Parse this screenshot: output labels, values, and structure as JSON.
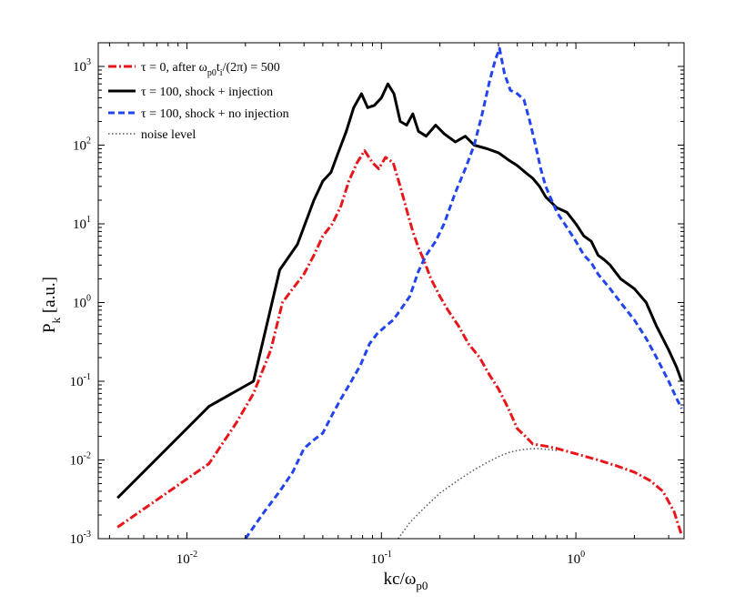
{
  "chart_data": {
    "type": "line",
    "title": "",
    "xscale": "log",
    "yscale": "log",
    "xlim": [
      0.0035,
      3.6
    ],
    "ylim": [
      0.001,
      2000
    ],
    "xlabel": {
      "main": "kc/ω",
      "sub": "p0"
    },
    "ylabel": {
      "main": "P",
      "sub": "k",
      "rest": " [a.u.]"
    },
    "x_ticks": [
      {
        "value": 0.01,
        "base": "10",
        "exp": "-2"
      },
      {
        "value": 0.1,
        "base": "10",
        "exp": "-1"
      },
      {
        "value": 1,
        "base": "10",
        "exp": "0"
      }
    ],
    "y_ticks": [
      {
        "value": 0.001,
        "base": "10",
        "exp": "-3"
      },
      {
        "value": 0.01,
        "base": "10",
        "exp": "-2"
      },
      {
        "value": 0.1,
        "base": "10",
        "exp": "-1"
      },
      {
        "value": 1,
        "base": "10",
        "exp": "0"
      },
      {
        "value": 10,
        "base": "10",
        "exp": "1"
      },
      {
        "value": 100,
        "base": "10",
        "exp": "2"
      },
      {
        "value": 1000,
        "base": "10",
        "exp": "3"
      }
    ],
    "legend_position": "top-left",
    "series": [
      {
        "name": "τ = 0, after ω_p0 t_i/(2π) = 500",
        "legend_parts": {
          "a": "τ = 0, after ω",
          "sub1": "p0",
          "b": "t",
          "sub2": "i",
          "c": "/(2π) = 500"
        },
        "color": "#e8161b",
        "style": "dashdot",
        "width": 3,
        "points": [
          [
            0.0044,
            0.0014
          ],
          [
            0.013,
            0.009
          ],
          [
            0.018,
            0.03
          ],
          [
            0.022,
            0.07
          ],
          [
            0.027,
            0.25
          ],
          [
            0.031,
            1.0
          ],
          [
            0.035,
            1.5
          ],
          [
            0.04,
            2.3
          ],
          [
            0.045,
            4.0
          ],
          [
            0.05,
            7.0
          ],
          [
            0.056,
            10
          ],
          [
            0.062,
            17
          ],
          [
            0.068,
            35
          ],
          [
            0.075,
            60
          ],
          [
            0.082,
            85
          ],
          [
            0.09,
            60
          ],
          [
            0.097,
            50
          ],
          [
            0.105,
            70
          ],
          [
            0.115,
            60
          ],
          [
            0.125,
            30
          ],
          [
            0.135,
            15
          ],
          [
            0.145,
            8
          ],
          [
            0.155,
            5
          ],
          [
            0.165,
            3.5
          ],
          [
            0.18,
            2
          ],
          [
            0.2,
            1.2
          ],
          [
            0.22,
            0.8
          ],
          [
            0.25,
            0.5
          ],
          [
            0.28,
            0.3
          ],
          [
            0.32,
            0.2
          ],
          [
            0.36,
            0.12
          ],
          [
            0.4,
            0.08
          ],
          [
            0.45,
            0.045
          ],
          [
            0.5,
            0.025
          ],
          [
            0.55,
            0.02
          ],
          [
            0.6,
            0.016
          ],
          [
            0.7,
            0.015
          ],
          [
            0.8,
            0.014
          ],
          [
            1.0,
            0.012
          ],
          [
            1.3,
            0.01
          ],
          [
            1.6,
            0.0085
          ],
          [
            2.0,
            0.007
          ],
          [
            2.4,
            0.0055
          ],
          [
            2.8,
            0.004
          ],
          [
            3.2,
            0.0022
          ],
          [
            3.5,
            0.0011
          ]
        ]
      },
      {
        "name": "τ = 100, shock + injection",
        "color": "#000000",
        "style": "solid",
        "width": 3,
        "points": [
          [
            0.0044,
            0.0033
          ],
          [
            0.013,
            0.048
          ],
          [
            0.022,
            0.1
          ],
          [
            0.03,
            2.6
          ],
          [
            0.037,
            5.5
          ],
          [
            0.045,
            20
          ],
          [
            0.05,
            35
          ],
          [
            0.055,
            45
          ],
          [
            0.06,
            80
          ],
          [
            0.066,
            150
          ],
          [
            0.072,
            300
          ],
          [
            0.079,
            450
          ],
          [
            0.085,
            300
          ],
          [
            0.092,
            320
          ],
          [
            0.1,
            400
          ],
          [
            0.108,
            600
          ],
          [
            0.116,
            450
          ],
          [
            0.125,
            200
          ],
          [
            0.135,
            180
          ],
          [
            0.145,
            250
          ],
          [
            0.155,
            150
          ],
          [
            0.17,
            130
          ],
          [
            0.19,
            180
          ],
          [
            0.21,
            140
          ],
          [
            0.24,
            110
          ],
          [
            0.27,
            130
          ],
          [
            0.3,
            100
          ],
          [
            0.35,
            90
          ],
          [
            0.4,
            80
          ],
          [
            0.45,
            65
          ],
          [
            0.5,
            55
          ],
          [
            0.55,
            45
          ],
          [
            0.6,
            38
          ],
          [
            0.65,
            30
          ],
          [
            0.7,
            22
          ],
          [
            0.8,
            16
          ],
          [
            0.9,
            14
          ],
          [
            1.0,
            10
          ],
          [
            1.1,
            7
          ],
          [
            1.2,
            6
          ],
          [
            1.3,
            4
          ],
          [
            1.4,
            3.5
          ],
          [
            1.5,
            3
          ],
          [
            1.7,
            2
          ],
          [
            2.0,
            1.5
          ],
          [
            2.3,
            1.0
          ],
          [
            2.6,
            0.5
          ],
          [
            3.0,
            0.25
          ],
          [
            3.3,
            0.15
          ],
          [
            3.5,
            0.1
          ]
        ]
      },
      {
        "name": "τ = 100, shock + no injection",
        "color": "#2244ee",
        "style": "dashed",
        "width": 3,
        "points": [
          [
            0.02,
            0.001
          ],
          [
            0.025,
            0.0022
          ],
          [
            0.03,
            0.004
          ],
          [
            0.035,
            0.007
          ],
          [
            0.04,
            0.014
          ],
          [
            0.045,
            0.018
          ],
          [
            0.05,
            0.022
          ],
          [
            0.056,
            0.038
          ],
          [
            0.062,
            0.06
          ],
          [
            0.07,
            0.1
          ],
          [
            0.078,
            0.16
          ],
          [
            0.087,
            0.3
          ],
          [
            0.095,
            0.4
          ],
          [
            0.105,
            0.5
          ],
          [
            0.115,
            0.6
          ],
          [
            0.125,
            0.8
          ],
          [
            0.14,
            1.2
          ],
          [
            0.155,
            2.5
          ],
          [
            0.17,
            4
          ],
          [
            0.19,
            6
          ],
          [
            0.21,
            10
          ],
          [
            0.24,
            25
          ],
          [
            0.27,
            50
          ],
          [
            0.3,
            100
          ],
          [
            0.33,
            250
          ],
          [
            0.36,
            650
          ],
          [
            0.385,
            1200
          ],
          [
            0.405,
            1700
          ],
          [
            0.43,
            800
          ],
          [
            0.46,
            500
          ],
          [
            0.5,
            450
          ],
          [
            0.54,
            380
          ],
          [
            0.58,
            200
          ],
          [
            0.62,
            100
          ],
          [
            0.66,
            50
          ],
          [
            0.7,
            30
          ],
          [
            0.75,
            20
          ],
          [
            0.8,
            14
          ],
          [
            0.9,
            9
          ],
          [
            1.0,
            6
          ],
          [
            1.1,
            4
          ],
          [
            1.2,
            3.2
          ],
          [
            1.3,
            2.3
          ],
          [
            1.5,
            1.5
          ],
          [
            1.7,
            1.0
          ],
          [
            2.0,
            0.6
          ],
          [
            2.3,
            0.35
          ],
          [
            2.6,
            0.2
          ],
          [
            3.0,
            0.1
          ],
          [
            3.3,
            0.06
          ],
          [
            3.5,
            0.045
          ]
        ]
      },
      {
        "name": "noise level",
        "color": "#555555",
        "style": "dotted",
        "width": 1.5,
        "points": [
          [
            0.122,
            0.001
          ],
          [
            0.14,
            0.0016
          ],
          [
            0.17,
            0.0026
          ],
          [
            0.2,
            0.0038
          ],
          [
            0.25,
            0.0056
          ],
          [
            0.3,
            0.0075
          ],
          [
            0.35,
            0.0093
          ],
          [
            0.4,
            0.011
          ],
          [
            0.45,
            0.0124
          ],
          [
            0.5,
            0.0132
          ],
          [
            0.55,
            0.0137
          ],
          [
            0.6,
            0.0139
          ],
          [
            0.65,
            0.0139
          ],
          [
            0.7,
            0.0137
          ],
          [
            0.8,
            0.0132
          ]
        ]
      }
    ]
  }
}
